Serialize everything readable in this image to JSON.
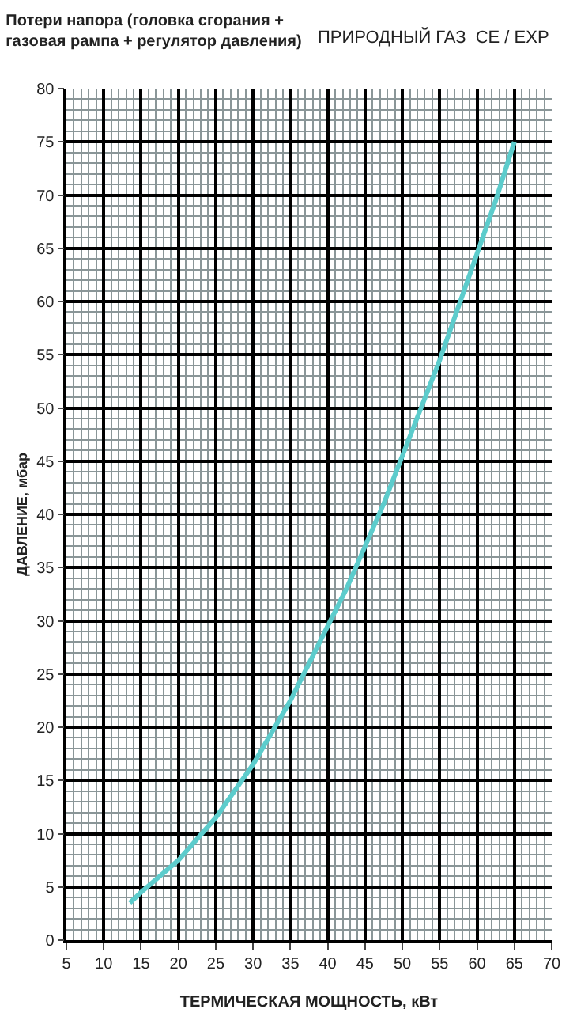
{
  "chart_data": {
    "type": "line",
    "title": "Потери напора (головка сгорания +\nгазовая рампа + регулятор давления)",
    "subtitle": "ПРИРОДНЫЙ ГАЗ  CE / EXP",
    "xlabel": "ТЕРМИЧЕСКАЯ МОЩНОСТЬ, кВт",
    "ylabel": "ДАВЛЕНИЕ, мбар",
    "x": [
      13.5,
      15,
      17.5,
      20,
      22.5,
      25,
      27.5,
      30,
      32.5,
      35,
      37.5,
      40,
      42.5,
      45,
      47.5,
      50,
      52.5,
      55,
      57.5,
      60,
      62.5,
      65
    ],
    "series": [
      {
        "color": "#5ccccc",
        "values": [
          3.5,
          4.5,
          6,
          7.5,
          9.5,
          11.5,
          14,
          16.5,
          19.5,
          22.5,
          26,
          29.5,
          33,
          37,
          41,
          45.5,
          50,
          54.5,
          59.5,
          64.5,
          69.5,
          75
        ]
      }
    ],
    "xlim": [
      5,
      70
    ],
    "xticks": [
      5,
      10,
      15,
      20,
      25,
      30,
      35,
      40,
      45,
      50,
      55,
      60,
      65,
      70
    ],
    "ylim": [
      0,
      80
    ],
    "yticks": [
      0,
      5,
      10,
      15,
      20,
      25,
      30,
      35,
      40,
      45,
      50,
      55,
      60,
      65,
      70,
      75,
      80
    ],
    "grid": true,
    "marker": "none",
    "line_style": "solid"
  }
}
